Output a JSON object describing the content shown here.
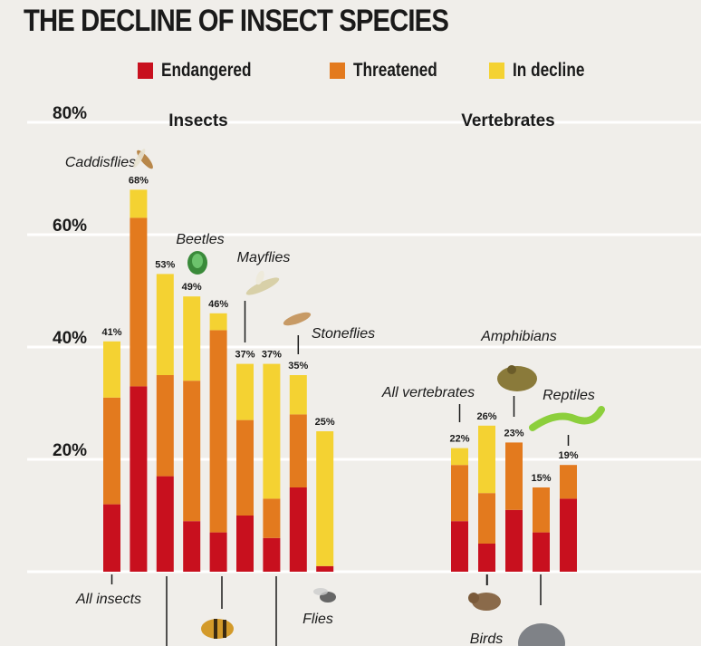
{
  "header": {
    "title": "THE DECLINE OF INSECT SPECIES"
  },
  "legend": [
    {
      "label": "Endangered",
      "color": "#c8101e"
    },
    {
      "label": "Threatened",
      "color": "#e37a1e"
    },
    {
      "label": "In decline",
      "color": "#f4d232"
    }
  ],
  "chart_data": {
    "type": "bar",
    "stacked": true,
    "title": "THE DECLINE OF INSECT SPECIES",
    "ylim": [
      0,
      80
    ],
    "yticks": [
      "80%",
      "60%",
      "40%",
      "20%"
    ],
    "ytick_values": [
      80,
      60,
      40,
      20
    ],
    "panels": [
      {
        "title": "Insects",
        "categories": [
          "All insects",
          "Caddisflies",
          "",
          "Beetles",
          "",
          "Mayflies",
          "",
          "Stoneflies",
          "Flies"
        ],
        "totals": [
          "41%",
          "68%",
          "53%",
          "49%",
          "46%",
          "37%",
          "37%",
          "35%",
          "25%"
        ],
        "series": [
          {
            "name": "Endangered",
            "values": [
              12,
              33,
              17,
              9,
              7,
              10,
              6,
              15,
              1
            ]
          },
          {
            "name": "Threatened",
            "values": [
              19,
              30,
              18,
              25,
              36,
              17,
              7,
              13,
              0
            ]
          },
          {
            "name": "In decline",
            "values": [
              10,
              5,
              18,
              15,
              3,
              10,
              24,
              7,
              24
            ]
          }
        ]
      },
      {
        "title": "Vertebrates",
        "categories": [
          "All vertebrates",
          "Birds",
          "Amphibians",
          "",
          "Reptiles"
        ],
        "totals": [
          "22%",
          "26%",
          "23%",
          "15%",
          "19%"
        ],
        "series": [
          {
            "name": "Endangered",
            "values": [
              9,
              5,
              11,
              7,
              13
            ]
          },
          {
            "name": "Threatened",
            "values": [
              10,
              9,
              12,
              8,
              6
            ]
          },
          {
            "name": "In decline",
            "values": [
              3,
              12,
              0,
              0,
              0
            ]
          }
        ]
      }
    ]
  }
}
